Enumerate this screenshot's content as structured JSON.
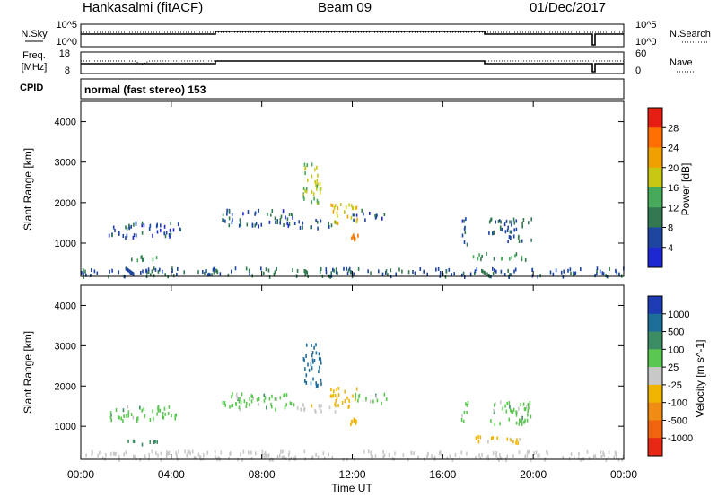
{
  "header": {
    "station": "Hankasalmi (fitACF)",
    "beam": "Beam 09",
    "date": "01/Dec/2017"
  },
  "scan_panel": {
    "left_label": "N.Sky",
    "left_ticks": [
      "10^5",
      "10^0"
    ],
    "right_label": "N.Search",
    "right_ticks": [
      "10^5",
      "10^0"
    ]
  },
  "freq_panel": {
    "left_label_1": "Freq.",
    "left_label_2": "[MHz]",
    "left_ticks": [
      "18",
      "8"
    ],
    "right_label": "Nave",
    "right_ticks": [
      "60",
      "0"
    ]
  },
  "cpid": {
    "label": "CPID",
    "text": "normal (fast stereo) 153"
  },
  "colors": {
    "power": [
      "#1e28d2",
      "#1e46a0",
      "#327850",
      "#46aa5a",
      "#c8c814",
      "#f0a000",
      "#ff6e00",
      "#e61e14"
    ],
    "velocity": [
      "#1e3cb4",
      "#1e6e9a",
      "#3c8c64",
      "#5ac850",
      "#c8c8c8",
      "#f0b400",
      "#f08c14",
      "#f0640f",
      "#e62814"
    ]
  },
  "chart_data": [
    {
      "type": "heatmap",
      "name": "Power",
      "xlabel": "Time UT",
      "xlim": [
        0,
        24
      ],
      "ylabel": "Slant Range [km]",
      "ylim": [
        180,
        4500
      ],
      "yticks": [
        "1000",
        "2000",
        "3000",
        "4000"
      ],
      "colorbar": {
        "label": "Power [dB]",
        "range": [
          0,
          32
        ],
        "ticks": [
          "4",
          "8",
          "12",
          "16",
          "20",
          "24",
          "28"
        ]
      },
      "regions": [
        {
          "t0": 0.0,
          "t1": 24.0,
          "r0": 200,
          "r1": 420,
          "value": 8
        },
        {
          "t0": 1.2,
          "t1": 2.8,
          "r0": 1150,
          "r1": 1550,
          "value": 6
        },
        {
          "t0": 3.0,
          "t1": 4.4,
          "r0": 1180,
          "r1": 1550,
          "value": 6
        },
        {
          "t0": 6.2,
          "t1": 9.4,
          "r0": 1450,
          "r1": 1850,
          "value": 7
        },
        {
          "t0": 9.4,
          "t1": 11.4,
          "r0": 1400,
          "r1": 1600,
          "value": 8
        },
        {
          "t0": 9.8,
          "t1": 10.6,
          "r0": 2000,
          "r1": 3100,
          "value": 16
        },
        {
          "t0": 11.0,
          "t1": 12.2,
          "r0": 1500,
          "r1": 2000,
          "value": 20
        },
        {
          "t0": 12.0,
          "t1": 13.5,
          "r0": 1600,
          "r1": 1850,
          "value": 6
        },
        {
          "t0": 11.9,
          "t1": 12.3,
          "r0": 1080,
          "r1": 1250,
          "value": 26
        },
        {
          "t0": 16.8,
          "t1": 17.1,
          "r0": 1000,
          "r1": 1700,
          "value": 6
        },
        {
          "t0": 18.0,
          "t1": 19.9,
          "r0": 1080,
          "r1": 1650,
          "value": 8
        },
        {
          "t0": 17.2,
          "t1": 19.8,
          "r0": 620,
          "r1": 780,
          "value": 12
        },
        {
          "t0": 2.0,
          "t1": 3.4,
          "r0": 580,
          "r1": 720,
          "value": 12
        }
      ]
    },
    {
      "type": "heatmap",
      "name": "Velocity",
      "xlabel": "Time UT",
      "xlim": [
        0,
        24
      ],
      "xticks": [
        "00:00",
        "04:00",
        "08:00",
        "12:00",
        "16:00",
        "20:00",
        "00:00"
      ],
      "ylabel": "Slant Range [km]",
      "ylim": [
        180,
        4500
      ],
      "yticks": [
        "1000",
        "2000",
        "3000",
        "4000"
      ],
      "colorbar": {
        "label": "Velocity [m s^-1]",
        "ticks": [
          "1000",
          "500",
          "100",
          "25",
          "-25",
          "-100",
          "-500",
          "-1000"
        ]
      },
      "regions": [
        {
          "t0": 0.0,
          "t1": 24.0,
          "r0": 200,
          "r1": 420,
          "value": -60
        },
        {
          "t0": 1.2,
          "t1": 2.8,
          "r0": 1150,
          "r1": 1550,
          "value": 0
        },
        {
          "t0": 3.0,
          "t1": 4.4,
          "r0": 1180,
          "r1": 1550,
          "value": 0
        },
        {
          "t0": 6.2,
          "t1": 9.4,
          "r0": 1450,
          "r1": 1850,
          "value": 0
        },
        {
          "t0": 9.4,
          "t1": 11.4,
          "r0": 1400,
          "r1": 1600,
          "value": -80
        },
        {
          "t0": 9.8,
          "t1": 10.6,
          "r0": 2000,
          "r1": 3100,
          "value": 150
        },
        {
          "t0": 11.0,
          "t1": 12.2,
          "r0": 1500,
          "r1": 2000,
          "value": -200
        },
        {
          "t0": 12.0,
          "t1": 13.5,
          "r0": 1600,
          "r1": 1850,
          "value": 0
        },
        {
          "t0": 11.9,
          "t1": 12.3,
          "r0": 1080,
          "r1": 1250,
          "value": -150
        },
        {
          "t0": 16.8,
          "t1": 17.1,
          "r0": 1000,
          "r1": 1700,
          "value": 0
        },
        {
          "t0": 18.0,
          "t1": 19.9,
          "r0": 1080,
          "r1": 1650,
          "value": 0
        },
        {
          "t0": 17.2,
          "t1": 19.8,
          "r0": 620,
          "r1": 780,
          "value": -120
        },
        {
          "t0": 2.0,
          "t1": 3.4,
          "r0": 580,
          "r1": 720,
          "value": 80
        }
      ]
    }
  ]
}
